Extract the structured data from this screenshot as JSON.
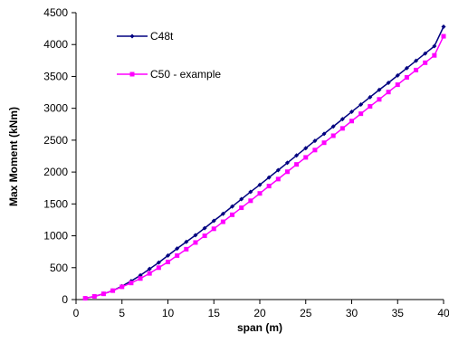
{
  "chart_data": {
    "type": "line",
    "title": "",
    "xlabel": "span (m)",
    "ylabel": "Max Moment (kNm)",
    "xlim": [
      0,
      40
    ],
    "ylim": [
      0,
      4500
    ],
    "x_ticks": [
      0,
      5,
      10,
      15,
      20,
      25,
      30,
      35,
      40
    ],
    "y_ticks": [
      0,
      500,
      1000,
      1500,
      2000,
      2500,
      3000,
      3500,
      4000,
      4500
    ],
    "grid": false,
    "legend_position": "top-left",
    "x": [
      1,
      2,
      3,
      4,
      5,
      6,
      7,
      8,
      9,
      10,
      11,
      12,
      13,
      14,
      15,
      16,
      17,
      18,
      19,
      20,
      21,
      22,
      23,
      24,
      25,
      26,
      27,
      28,
      29,
      30,
      31,
      32,
      33,
      34,
      35,
      36,
      37,
      38,
      39,
      40
    ],
    "series": [
      {
        "name": "C48t",
        "color": "#000080",
        "marker": "diamond",
        "values": [
          20,
          50,
          90,
          140,
          210,
          290,
          380,
          480,
          580,
          690,
          800,
          905,
          1010,
          1120,
          1235,
          1345,
          1460,
          1575,
          1690,
          1800,
          1915,
          2030,
          2145,
          2260,
          2375,
          2490,
          2600,
          2715,
          2830,
          2945,
          3060,
          3175,
          3290,
          3400,
          3515,
          3630,
          3745,
          3860,
          3975,
          4280
        ]
      },
      {
        "name": "C50 - example",
        "color": "#ff00ff",
        "marker": "square",
        "values": [
          20,
          50,
          90,
          140,
          200,
          260,
          330,
          410,
          500,
          590,
          690,
          790,
          895,
          1000,
          1110,
          1220,
          1330,
          1440,
          1550,
          1665,
          1780,
          1890,
          2005,
          2120,
          2230,
          2345,
          2460,
          2570,
          2685,
          2800,
          2915,
          3030,
          3140,
          3255,
          3370,
          3485,
          3600,
          3715,
          3830,
          4130
        ]
      }
    ]
  }
}
